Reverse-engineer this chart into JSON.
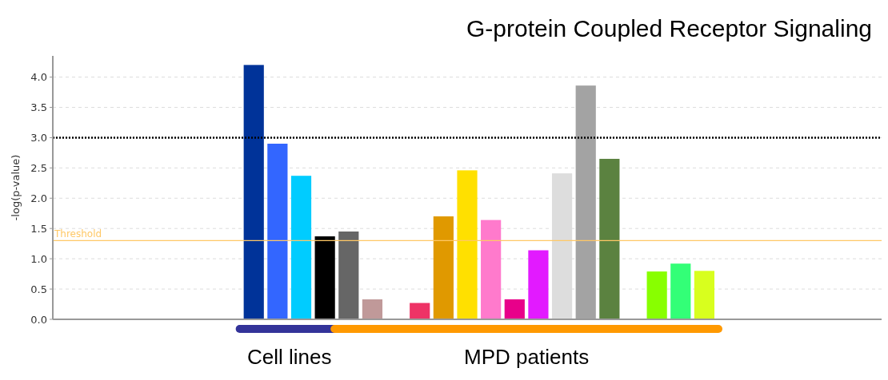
{
  "chart_data": {
    "type": "bar",
    "title": "G-protein Coupled Receptor Signaling",
    "ylabel": "-log(p-value)",
    "categories": [
      null,
      null,
      null,
      null,
      null,
      null,
      null,
      null,
      null,
      null,
      null,
      null,
      null,
      null,
      null,
      null,
      null,
      null,
      null,
      null,
      null,
      null,
      null,
      null,
      null,
      null,
      null,
      null,
      null,
      null,
      null,
      null,
      null,
      null,
      null
    ],
    "values": [
      null,
      null,
      null,
      null,
      null,
      null,
      null,
      null,
      4.2,
      2.9,
      2.37,
      1.37,
      1.45,
      0.33,
      null,
      0.27,
      1.7,
      2.46,
      1.64,
      0.33,
      1.14,
      2.41,
      3.86,
      2.65,
      null,
      0.79,
      0.92,
      0.8,
      null,
      null,
      null,
      null,
      null,
      null,
      null
    ],
    "colors": [
      null,
      null,
      null,
      null,
      null,
      null,
      null,
      null,
      "#003399",
      "#3366ff",
      "#00ccff",
      "#000000",
      "#666666",
      "#c09999",
      null,
      "#ee3366",
      "#e09900",
      "#ffe000",
      "#ff7acc",
      "#e8008a",
      "#e21aff",
      "#dddddd",
      "#a3a3a3",
      "#5b8240",
      null,
      "#88ff00",
      "#33ff77",
      "#d8ff1e",
      null,
      null,
      null,
      null,
      null,
      null,
      null
    ],
    "ylim": [
      0,
      4.35
    ],
    "yticks": [
      {
        "value": 0,
        "label": "0.0"
      },
      0.5,
      {
        "value": 1,
        "label": "1.0"
      },
      1.5,
      {
        "value": 2,
        "label": "2.0"
      },
      2.5,
      {
        "value": 3,
        "label": "3.0"
      },
      3.5,
      {
        "value": 4,
        "label": "4.0"
      }
    ],
    "grid": "y",
    "ref_lines": [
      {
        "axis": "y",
        "value": 3,
        "color": "#000000",
        "line_style": "dotted"
      },
      {
        "axis": "y",
        "value": 1.3,
        "label": "Threshold",
        "color": "#ffc866",
        "line_style": "solid"
      }
    ],
    "annotations": [
      "Cell lines",
      "MPD patients"
    ]
  }
}
